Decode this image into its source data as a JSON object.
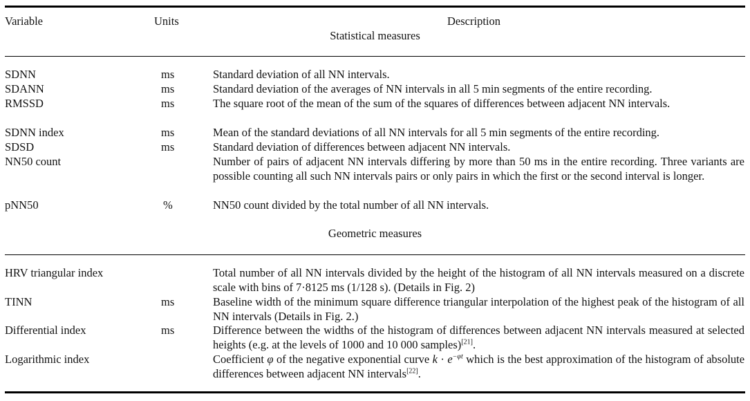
{
  "header": {
    "variable": "Variable",
    "units": "Units",
    "description": "Description"
  },
  "statistical": {
    "title": "Statistical measures",
    "rows": [
      {
        "variable": "SDNN",
        "units": "ms",
        "description": "Standard deviation of all NN intervals."
      },
      {
        "variable": "SDANN",
        "units": "ms",
        "description": "Standard deviation of the averages of NN intervals in all 5 min segments of the entire recording."
      },
      {
        "variable": "RMSSD",
        "units": "ms",
        "description": "The square root of the mean of the sum of the squares of differences between adjacent NN intervals."
      },
      {
        "variable": "SDNN index",
        "units": "ms",
        "description": "Mean of the standard deviations of all NN intervals for all 5 min segments of the entire recording."
      },
      {
        "variable": "SDSD",
        "units": "ms",
        "description": "Standard deviation of differences between adjacent NN intervals."
      },
      {
        "variable": "NN50 count",
        "units": "",
        "description": "Number of pairs of adjacent NN intervals differing by more than 50 ms in the entire recording. Three variants are possible counting all such NN intervals pairs or only pairs in which the first or the second interval is longer."
      },
      {
        "variable": "pNN50",
        "units": "%",
        "description": "NN50 count divided by the total number of all NN intervals."
      }
    ]
  },
  "geometric": {
    "title": "Geometric measures",
    "rows": [
      {
        "variable": "HRV triangular index",
        "units": "",
        "description": "Total number of all NN intervals divided by the height of the histogram of all NN intervals measured on a discrete scale with bins of 7·8125 ms (1/128 s). (Details in Fig. 2)"
      },
      {
        "variable": "TINN",
        "units": "ms",
        "description": "Baseline width of the minimum square difference triangular interpolation of the highest peak of the histogram of all NN intervals (Details in Fig. 2.)"
      },
      {
        "variable": "Differential index",
        "units": "ms",
        "description_main": "Difference between the widths of the histogram of differences between adjacent NN intervals measured at selected heights (e.g. at the levels of 1000 and 10 000 samples)",
        "ref": "[21]",
        "description_end": "."
      },
      {
        "variable": "Logarithmic index",
        "units": "",
        "description_a": "Coefficient",
        "phi": "φ",
        "description_b": "of the negative exponential curve",
        "formula_k": "k",
        "formula_dot": "·",
        "formula_e": "e",
        "formula_exp": "−φt",
        "description_c": "which is the best approximation of the histogram of absolute differences between adjacent NN intervals",
        "ref": "[22]",
        "description_end": "."
      }
    ]
  }
}
